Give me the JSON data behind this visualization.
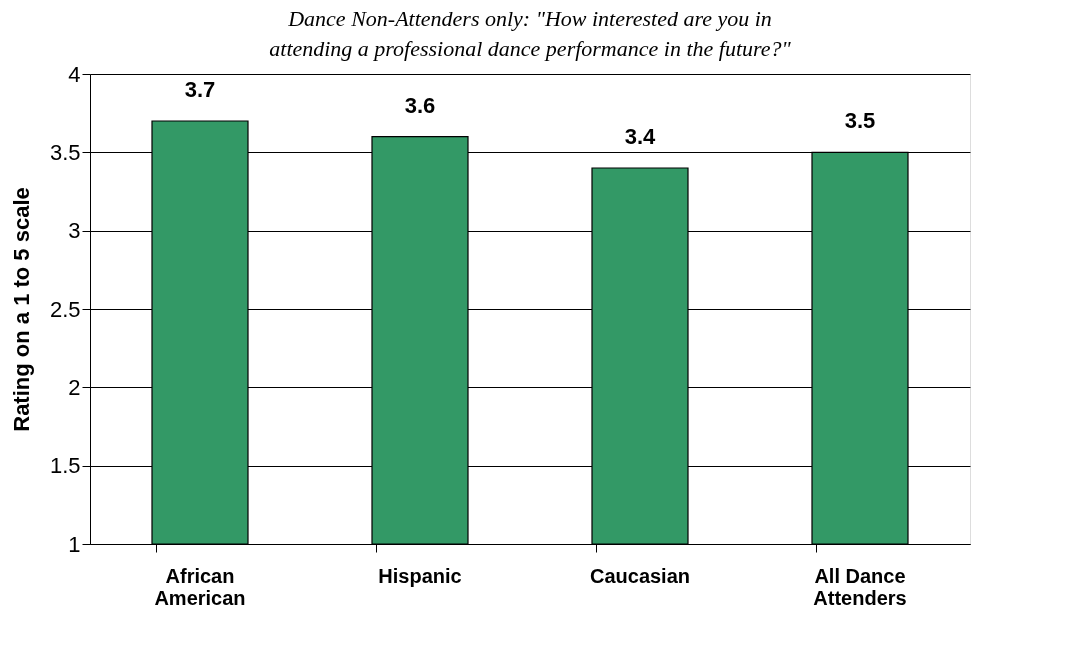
{
  "chart_data": {
    "type": "bar",
    "title": "Dance Non-Attenders only:  \"How interested are you in\nattending a professional dance performance in the future?\"",
    "ylabel": "Rating on a 1 to 5 scale",
    "categories": [
      "African American",
      "Hispanic",
      "Caucasian",
      "All Dance Attenders"
    ],
    "values": [
      3.7,
      3.6,
      3.4,
      3.5
    ],
    "color": "#339966",
    "ylim": [
      1,
      4
    ],
    "yticks": [
      1,
      1.5,
      2,
      2.5,
      3,
      3.5,
      4
    ],
    "grid": "y",
    "data_labels": true
  }
}
